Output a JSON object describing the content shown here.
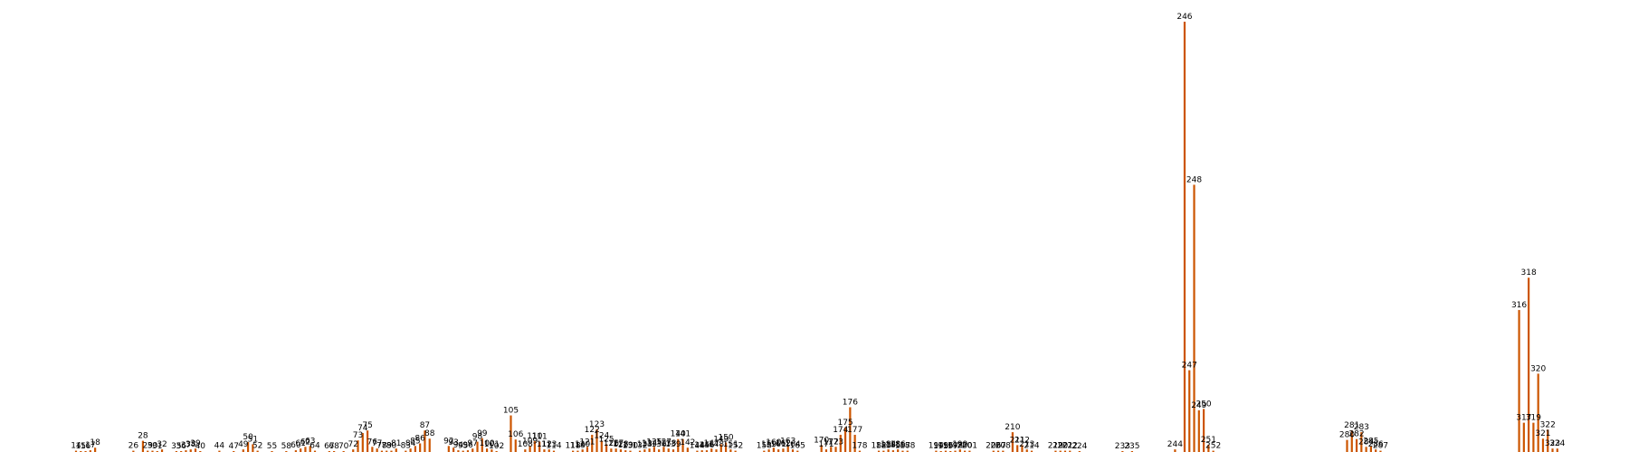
{
  "chart_data": {
    "type": "bar",
    "title": "",
    "xlabel": "",
    "ylabel": "",
    "grid": false,
    "legend": "none",
    "color": "#cc5500",
    "ylim": [
      0,
      1
    ],
    "x_range": [
      13,
      328
    ],
    "points": [
      {
        "x": 14,
        "v": 0.003
      },
      {
        "x": 15,
        "v": 0.002
      },
      {
        "x": 16,
        "v": 0.002
      },
      {
        "x": 17,
        "v": 0.004
      },
      {
        "x": 18,
        "v": 0.01
      },
      {
        "x": 26,
        "v": 0.003
      },
      {
        "x": 28,
        "v": 0.026
      },
      {
        "x": 29,
        "v": 0.003
      },
      {
        "x": 30,
        "v": 0.003
      },
      {
        "x": 31,
        "v": 0.002
      },
      {
        "x": 32,
        "v": 0.006
      },
      {
        "x": 35,
        "v": 0.002
      },
      {
        "x": 36,
        "v": 0.002
      },
      {
        "x": 37,
        "v": 0.004
      },
      {
        "x": 38,
        "v": 0.006
      },
      {
        "x": 39,
        "v": 0.008
      },
      {
        "x": 40,
        "v": 0.002
      },
      {
        "x": 44,
        "v": 0.003
      },
      {
        "x": 47,
        "v": 0.002
      },
      {
        "x": 49,
        "v": 0.006
      },
      {
        "x": 50,
        "v": 0.023
      },
      {
        "x": 51,
        "v": 0.018
      },
      {
        "x": 52,
        "v": 0.003
      },
      {
        "x": 55,
        "v": 0.002
      },
      {
        "x": 58,
        "v": 0.002
      },
      {
        "x": 60,
        "v": 0.004
      },
      {
        "x": 61,
        "v": 0.008
      },
      {
        "x": 62,
        "v": 0.012
      },
      {
        "x": 63,
        "v": 0.014
      },
      {
        "x": 64,
        "v": 0.003
      },
      {
        "x": 67,
        "v": 0.002
      },
      {
        "x": 68,
        "v": 0.002
      },
      {
        "x": 70,
        "v": 0.002
      },
      {
        "x": 72,
        "v": 0.006
      },
      {
        "x": 73,
        "v": 0.027
      },
      {
        "x": 74,
        "v": 0.044
      },
      {
        "x": 75,
        "v": 0.05
      },
      {
        "x": 76,
        "v": 0.012
      },
      {
        "x": 77,
        "v": 0.008
      },
      {
        "x": 78,
        "v": 0.003
      },
      {
        "x": 79,
        "v": 0.003
      },
      {
        "x": 80,
        "v": 0.003
      },
      {
        "x": 81,
        "v": 0.008
      },
      {
        "x": 83,
        "v": 0.003
      },
      {
        "x": 84,
        "v": 0.008
      },
      {
        "x": 85,
        "v": 0.014
      },
      {
        "x": 86,
        "v": 0.02
      },
      {
        "x": 87,
        "v": 0.05
      },
      {
        "x": 88,
        "v": 0.031
      },
      {
        "x": 92,
        "v": 0.014
      },
      {
        "x": 93,
        "v": 0.01
      },
      {
        "x": 94,
        "v": 0.004
      },
      {
        "x": 95,
        "v": 0.003
      },
      {
        "x": 96,
        "v": 0.004
      },
      {
        "x": 97,
        "v": 0.008
      },
      {
        "x": 98,
        "v": 0.024
      },
      {
        "x": 99,
        "v": 0.032
      },
      {
        "x": 100,
        "v": 0.008
      },
      {
        "x": 101,
        "v": 0.006
      },
      {
        "x": 102,
        "v": 0.002
      },
      {
        "x": 105,
        "v": 0.085
      },
      {
        "x": 106,
        "v": 0.029
      },
      {
        "x": 108,
        "v": 0.006
      },
      {
        "x": 109,
        "v": 0.014
      },
      {
        "x": 110,
        "v": 0.025
      },
      {
        "x": 111,
        "v": 0.024
      },
      {
        "x": 112,
        "v": 0.006
      },
      {
        "x": 113,
        "v": 0.006
      },
      {
        "x": 114,
        "v": 0.003
      },
      {
        "x": 118,
        "v": 0.003
      },
      {
        "x": 119,
        "v": 0.003
      },
      {
        "x": 120,
        "v": 0.006
      },
      {
        "x": 121,
        "v": 0.012
      },
      {
        "x": 122,
        "v": 0.04
      },
      {
        "x": 123,
        "v": 0.053
      },
      {
        "x": 124,
        "v": 0.026
      },
      {
        "x": 125,
        "v": 0.018
      },
      {
        "x": 126,
        "v": 0.008
      },
      {
        "x": 127,
        "v": 0.008
      },
      {
        "x": 128,
        "v": 0.006
      },
      {
        "x": 129,
        "v": 0.004
      },
      {
        "x": 130,
        "v": 0.003
      },
      {
        "x": 132,
        "v": 0.003
      },
      {
        "x": 133,
        "v": 0.006
      },
      {
        "x": 134,
        "v": 0.008
      },
      {
        "x": 135,
        "v": 0.012
      },
      {
        "x": 136,
        "v": 0.006
      },
      {
        "x": 137,
        "v": 0.012
      },
      {
        "x": 138,
        "v": 0.008
      },
      {
        "x": 139,
        "v": 0.006
      },
      {
        "x": 140,
        "v": 0.03
      },
      {
        "x": 141,
        "v": 0.03
      },
      {
        "x": 142,
        "v": 0.01
      },
      {
        "x": 144,
        "v": 0.003
      },
      {
        "x": 145,
        "v": 0.004
      },
      {
        "x": 146,
        "v": 0.004
      },
      {
        "x": 147,
        "v": 0.008
      },
      {
        "x": 148,
        "v": 0.006
      },
      {
        "x": 149,
        "v": 0.018
      },
      {
        "x": 150,
        "v": 0.022
      },
      {
        "x": 151,
        "v": 0.006
      },
      {
        "x": 152,
        "v": 0.003
      },
      {
        "x": 158,
        "v": 0.003
      },
      {
        "x": 159,
        "v": 0.006
      },
      {
        "x": 160,
        "v": 0.01
      },
      {
        "x": 161,
        "v": 0.006
      },
      {
        "x": 162,
        "v": 0.008
      },
      {
        "x": 163,
        "v": 0.014
      },
      {
        "x": 164,
        "v": 0.006
      },
      {
        "x": 165,
        "v": 0.003
      },
      {
        "x": 170,
        "v": 0.016
      },
      {
        "x": 171,
        "v": 0.006
      },
      {
        "x": 172,
        "v": 0.012
      },
      {
        "x": 173,
        "v": 0.012
      },
      {
        "x": 174,
        "v": 0.04
      },
      {
        "x": 175,
        "v": 0.057
      },
      {
        "x": 176,
        "v": 0.104
      },
      {
        "x": 177,
        "v": 0.04
      },
      {
        "x": 178,
        "v": 0.003
      },
      {
        "x": 182,
        "v": 0.003
      },
      {
        "x": 183,
        "v": 0.003
      },
      {
        "x": 184,
        "v": 0.006
      },
      {
        "x": 185,
        "v": 0.004
      },
      {
        "x": 186,
        "v": 0.006
      },
      {
        "x": 187,
        "v": 0.003
      },
      {
        "x": 188,
        "v": 0.003
      },
      {
        "x": 194,
        "v": 0.003
      },
      {
        "x": 195,
        "v": 0.002
      },
      {
        "x": 196,
        "v": 0.003
      },
      {
        "x": 197,
        "v": 0.002
      },
      {
        "x": 198,
        "v": 0.003
      },
      {
        "x": 199,
        "v": 0.006
      },
      {
        "x": 200,
        "v": 0.003
      },
      {
        "x": 201,
        "v": 0.003
      },
      {
        "x": 206,
        "v": 0.003
      },
      {
        "x": 207,
        "v": 0.003
      },
      {
        "x": 208,
        "v": 0.003
      },
      {
        "x": 210,
        "v": 0.046
      },
      {
        "x": 211,
        "v": 0.016
      },
      {
        "x": 212,
        "v": 0.016
      },
      {
        "x": 213,
        "v": 0.006
      },
      {
        "x": 214,
        "v": 0.003
      },
      {
        "x": 219,
        "v": 0.003
      },
      {
        "x": 220,
        "v": 0.003
      },
      {
        "x": 221,
        "v": 0.003
      },
      {
        "x": 222,
        "v": 0.003
      },
      {
        "x": 224,
        "v": 0.002
      },
      {
        "x": 233,
        "v": 0.002
      },
      {
        "x": 235,
        "v": 0.002
      },
      {
        "x": 244,
        "v": 0.006
      },
      {
        "x": 246,
        "v": 1.0
      },
      {
        "x": 247,
        "v": 0.19
      },
      {
        "x": 248,
        "v": 0.621
      },
      {
        "x": 249,
        "v": 0.097
      },
      {
        "x": 250,
        "v": 0.1
      },
      {
        "x": 251,
        "v": 0.017
      },
      {
        "x": 252,
        "v": 0.003
      },
      {
        "x": 280,
        "v": 0.028
      },
      {
        "x": 281,
        "v": 0.05
      },
      {
        "x": 282,
        "v": 0.03
      },
      {
        "x": 283,
        "v": 0.046
      },
      {
        "x": 284,
        "v": 0.012
      },
      {
        "x": 285,
        "v": 0.014
      },
      {
        "x": 286,
        "v": 0.006
      },
      {
        "x": 287,
        "v": 0.003
      },
      {
        "x": 316,
        "v": 0.33
      },
      {
        "x": 317,
        "v": 0.068
      },
      {
        "x": 318,
        "v": 0.405
      },
      {
        "x": 319,
        "v": 0.068
      },
      {
        "x": 320,
        "v": 0.182
      },
      {
        "x": 321,
        "v": 0.031
      },
      {
        "x": 322,
        "v": 0.052
      },
      {
        "x": 323,
        "v": 0.008
      },
      {
        "x": 324,
        "v": 0.008
      }
    ]
  }
}
